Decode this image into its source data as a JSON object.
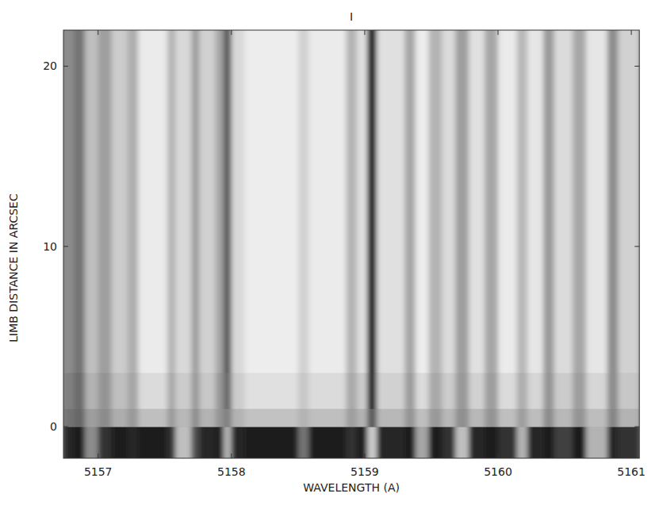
{
  "chart_data": {
    "type": "heatmap",
    "title": "I",
    "x_label": "WAVELENGTH (A)",
    "y_label": "LIMB DISTANCE IN ARCSEC",
    "xlim": [
      5156.74,
      5161.06
    ],
    "ylim": [
      -1.75,
      22
    ],
    "xticks": [
      5157,
      5158,
      5159,
      5160,
      5161
    ],
    "yticks": [
      0,
      10,
      20
    ],
    "x_edges": [
      5156.74,
      5156.82,
      5156.9,
      5157.0,
      5157.1,
      5157.22,
      5157.3,
      5157.52,
      5157.58,
      5157.7,
      5157.76,
      5157.88,
      5157.94,
      5158.0,
      5158.1,
      5158.5,
      5158.58,
      5158.86,
      5158.94,
      5159.02,
      5159.09,
      5159.3,
      5159.38,
      5159.48,
      5159.58,
      5159.68,
      5159.78,
      5159.9,
      5160.0,
      5160.14,
      5160.22,
      5160.34,
      5160.42,
      5160.56,
      5160.66,
      5160.82,
      5160.9,
      5161.06
    ],
    "y_edges": [
      -1.75,
      0,
      1,
      3,
      22
    ],
    "cells": [
      [
        0.15,
        0.1,
        0.55,
        0.2,
        0.1,
        0.15,
        0.1,
        0.2,
        0.75,
        0.3,
        0.15,
        0.1,
        0.7,
        0.15,
        0.1,
        0.45,
        0.1,
        0.2,
        0.1,
        0.8,
        0.15,
        0.1,
        0.65,
        0.1,
        0.2,
        0.75,
        0.15,
        0.1,
        0.2,
        0.7,
        0.15,
        0.1,
        0.25,
        0.1,
        0.7,
        0.15,
        0.2
      ],
      [
        0.45,
        0.4,
        0.62,
        0.55,
        0.68,
        0.6,
        0.75,
        0.6,
        0.72,
        0.55,
        0.7,
        0.58,
        0.5,
        0.7,
        0.76,
        0.7,
        0.75,
        0.62,
        0.7,
        0.35,
        0.72,
        0.58,
        0.75,
        0.6,
        0.72,
        0.56,
        0.72,
        0.58,
        0.75,
        0.62,
        0.74,
        0.55,
        0.72,
        0.58,
        0.74,
        0.52,
        0.7
      ],
      [
        0.5,
        0.42,
        0.7,
        0.58,
        0.75,
        0.65,
        0.86,
        0.66,
        0.8,
        0.6,
        0.78,
        0.6,
        0.4,
        0.8,
        0.88,
        0.78,
        0.86,
        0.66,
        0.8,
        0.1,
        0.82,
        0.62,
        0.86,
        0.66,
        0.8,
        0.6,
        0.82,
        0.62,
        0.86,
        0.68,
        0.84,
        0.58,
        0.8,
        0.62,
        0.84,
        0.55,
        0.78
      ],
      [
        0.55,
        0.45,
        0.75,
        0.62,
        0.8,
        0.68,
        0.92,
        0.7,
        0.85,
        0.62,
        0.82,
        0.65,
        0.35,
        0.85,
        0.93,
        0.82,
        0.92,
        0.7,
        0.88,
        0.02,
        0.88,
        0.65,
        0.93,
        0.7,
        0.86,
        0.62,
        0.88,
        0.65,
        0.92,
        0.72,
        0.9,
        0.6,
        0.86,
        0.65,
        0.9,
        0.55,
        0.82
      ]
    ]
  }
}
